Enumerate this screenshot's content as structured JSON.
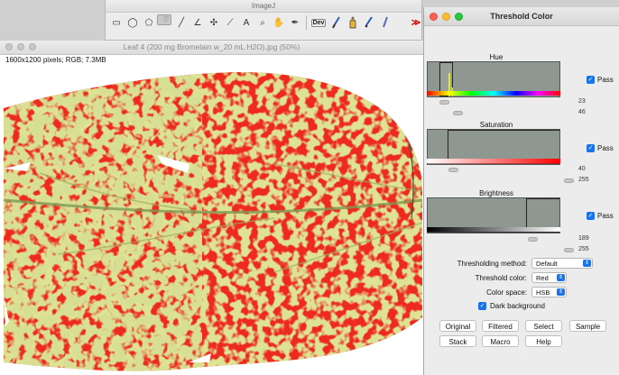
{
  "toolbar": {
    "title": "ImageJ",
    "tools": [
      {
        "name": "rectangle-tool",
        "glyph": "▭"
      },
      {
        "name": "oval-tool",
        "glyph": "◯"
      },
      {
        "name": "polygon-tool",
        "glyph": "⬠"
      },
      {
        "name": "freehand-tool",
        "glyph": "♡"
      },
      {
        "name": "line-tool",
        "glyph": "╱"
      },
      {
        "name": "angle-tool",
        "glyph": "∠"
      },
      {
        "name": "point-tool",
        "glyph": "✣"
      },
      {
        "name": "wand-tool",
        "glyph": "⟋"
      },
      {
        "name": "text-tool",
        "glyph": "A"
      },
      {
        "name": "zoom-tool",
        "glyph": "⌕"
      },
      {
        "name": "hand-tool",
        "glyph": "✋"
      },
      {
        "name": "color-picker-tool",
        "glyph": "✒"
      }
    ],
    "dev_label": "Dev",
    "extra_tools": [
      {
        "name": "brush-tool",
        "glyph": "🖌"
      },
      {
        "name": "stamp-tool",
        "glyph": "✋"
      },
      {
        "name": "pipette-tool",
        "glyph": "✎"
      },
      {
        "name": "pencil-tool",
        "glyph": "✏"
      }
    ],
    "more_glyph": "≫"
  },
  "image_window": {
    "title": "Leaf 4 (200 mg Bromelain w_20 mL H2O).jpg (50%)",
    "info": "1600x1200 pixels; RGB; 7.3MB"
  },
  "threshold": {
    "title": "Threshold Color",
    "hue": {
      "label": "Hue",
      "min": 23,
      "max": 46,
      "min_frac": 0.09,
      "max_frac": 0.19,
      "pass_label": "Pass",
      "pass": true
    },
    "saturation": {
      "label": "Saturation",
      "min": 40,
      "max": 255,
      "min_frac": 0.16,
      "max_frac": 1.0,
      "pass_label": "Pass",
      "pass": true
    },
    "brightness": {
      "label": "Brightness",
      "min": 189,
      "max": 255,
      "min_frac": 0.74,
      "max_frac": 1.0,
      "pass_label": "Pass",
      "pass": true
    },
    "method_label": "Thresholding method:",
    "method_value": "Default",
    "color_label": "Threshold color:",
    "color_value": "Red",
    "space_label": "Color space:",
    "space_value": "HSB",
    "dark_bg_label": "Dark background",
    "dark_bg": true,
    "buttons_row1": [
      "Original",
      "Filtered",
      "Select",
      "Sample"
    ],
    "buttons_row2": [
      "Stack",
      "Macro",
      "Help"
    ]
  },
  "colors": {
    "threshold_red": "#ee2a1e",
    "leaf_green": "#b6c24a",
    "accent": "#1a73e8"
  }
}
